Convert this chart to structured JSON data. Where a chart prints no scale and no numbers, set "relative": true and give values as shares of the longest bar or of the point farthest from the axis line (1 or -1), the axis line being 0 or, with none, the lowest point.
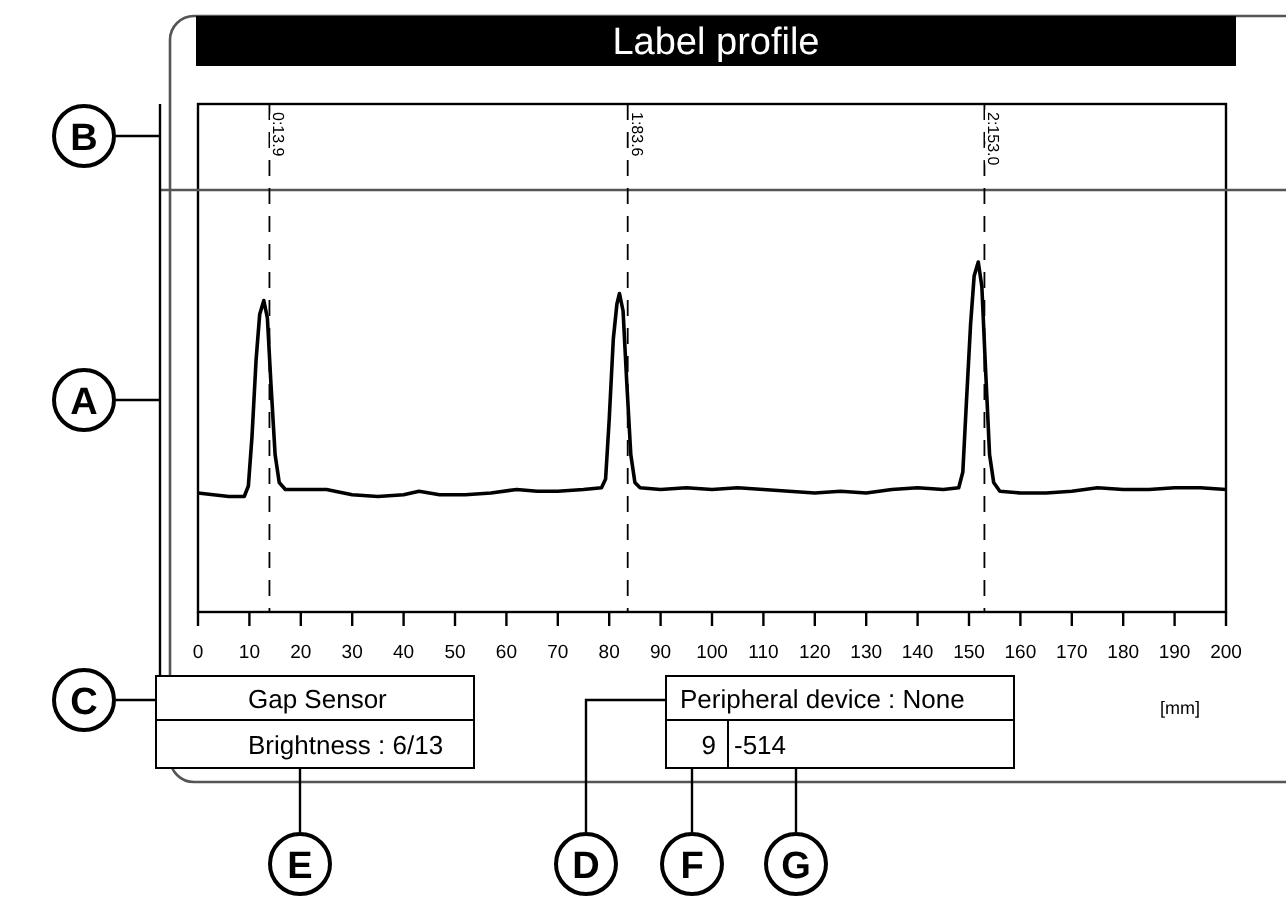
{
  "chart_data": {
    "type": "line",
    "title": "Label profile",
    "xlabel": "[mm]",
    "relative": true,
    "grid": false,
    "line_style": "solid",
    "marker": "none",
    "xlim": [
      0,
      200
    ],
    "xticks": [
      0,
      10,
      20,
      30,
      40,
      50,
      60,
      70,
      80,
      90,
      100,
      110,
      120,
      130,
      140,
      150,
      160,
      170,
      180,
      190,
      200
    ],
    "series": [
      {
        "color": "#000000",
        "x": [
          0,
          3,
          6,
          9,
          9.8,
          10.5,
          11.3,
          12,
          12.8,
          13.5,
          14.2,
          15,
          15.8,
          17,
          20,
          25,
          30,
          35,
          40,
          43,
          47,
          52,
          57,
          62,
          66,
          70,
          75,
          78.5,
          79.3,
          80,
          80.8,
          81.5,
          82,
          82.7,
          83.4,
          84.2,
          85,
          86,
          90,
          95,
          100,
          105,
          110,
          115,
          120,
          125,
          130,
          135,
          140,
          145,
          148,
          148.8,
          149.5,
          150.3,
          151,
          151.8,
          152.5,
          153.2,
          154,
          154.8,
          156,
          160,
          165,
          170,
          175,
          180,
          185,
          190,
          195,
          200
        ],
        "values": [
          0.34,
          0.335,
          0.33,
          0.33,
          0.36,
          0.5,
          0.72,
          0.85,
          0.89,
          0.84,
          0.65,
          0.45,
          0.37,
          0.35,
          0.35,
          0.35,
          0.335,
          0.33,
          0.335,
          0.345,
          0.335,
          0.335,
          0.34,
          0.35,
          0.345,
          0.345,
          0.35,
          0.355,
          0.38,
          0.55,
          0.78,
          0.88,
          0.91,
          0.86,
          0.66,
          0.45,
          0.37,
          0.355,
          0.35,
          0.355,
          0.35,
          0.355,
          0.35,
          0.345,
          0.34,
          0.345,
          0.34,
          0.35,
          0.355,
          0.35,
          0.355,
          0.4,
          0.6,
          0.82,
          0.96,
          1,
          0.93,
          0.7,
          0.45,
          0.37,
          0.345,
          0.34,
          0.34,
          0.345,
          0.355,
          0.35,
          0.35,
          0.355,
          0.355,
          0.35
        ]
      }
    ],
    "ref_lines": [
      {
        "axis": "x",
        "value": 13.9,
        "label": "0:13.9",
        "line_style": "dashed"
      },
      {
        "axis": "x",
        "value": 83.6,
        "label": "1:83.6",
        "line_style": "dashed"
      },
      {
        "axis": "x",
        "value": 153.0,
        "label": "2:153.0",
        "line_style": "dashed"
      }
    ],
    "annotations": [
      "Gap Sensor",
      "Brightness : 6/13",
      "Peripheral device : None",
      "9",
      "-514",
      "A",
      "B",
      "C",
      "D",
      "E",
      "F",
      "G"
    ]
  }
}
